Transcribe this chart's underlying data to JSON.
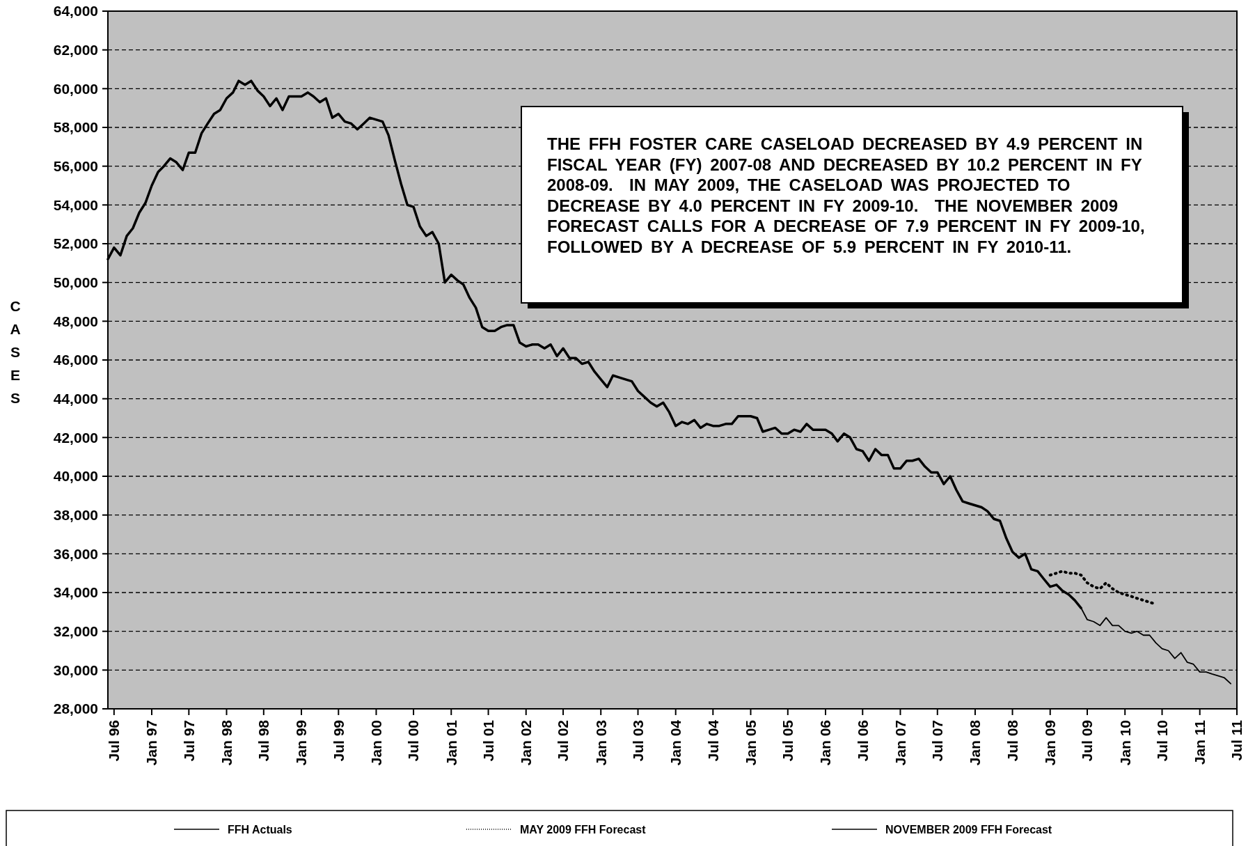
{
  "chart_data": {
    "type": "line",
    "ylabel": "CASES",
    "xlim": [
      "1996-06",
      "2011-07"
    ],
    "ylim": [
      28000,
      64000
    ],
    "yticks": [
      {
        "value": 28000,
        "label": "28,000"
      },
      {
        "value": 30000,
        "label": "30,000"
      },
      {
        "value": 32000,
        "label": "32,000"
      },
      {
        "value": 34000,
        "label": "34,000"
      },
      {
        "value": 36000,
        "label": "36,000"
      },
      {
        "value": 38000,
        "label": "38,000"
      },
      {
        "value": 40000,
        "label": "40,000"
      },
      {
        "value": 42000,
        "label": "42,000"
      },
      {
        "value": 44000,
        "label": "44,000"
      },
      {
        "value": 46000,
        "label": "46,000"
      },
      {
        "value": 48000,
        "label": "48,000"
      },
      {
        "value": 50000,
        "label": "50,000"
      },
      {
        "value": 52000,
        "label": "52,000"
      },
      {
        "value": 54000,
        "label": "54,000"
      },
      {
        "value": 56000,
        "label": "56,000"
      },
      {
        "value": 58000,
        "label": "58,000"
      },
      {
        "value": 60000,
        "label": "60,000"
      },
      {
        "value": 62000,
        "label": "62,000"
      },
      {
        "value": 64000,
        "label": "64,000"
      }
    ],
    "xticks": [
      {
        "value": "1996-07",
        "label": "Jul 96"
      },
      {
        "value": "1997-01",
        "label": "Jan 97"
      },
      {
        "value": "1997-07",
        "label": "Jul 97"
      },
      {
        "value": "1998-01",
        "label": "Jan 98"
      },
      {
        "value": "1998-07",
        "label": "Jul 98"
      },
      {
        "value": "1999-01",
        "label": "Jan 99"
      },
      {
        "value": "1999-07",
        "label": "Jul 99"
      },
      {
        "value": "2000-01",
        "label": "Jan 00"
      },
      {
        "value": "2000-07",
        "label": "Jul 00"
      },
      {
        "value": "2001-01",
        "label": "Jan 01"
      },
      {
        "value": "2001-07",
        "label": "Jul 01"
      },
      {
        "value": "2002-01",
        "label": "Jan 02"
      },
      {
        "value": "2002-07",
        "label": "Jul 02"
      },
      {
        "value": "2003-01",
        "label": "Jan 03"
      },
      {
        "value": "2003-07",
        "label": "Jul 03"
      },
      {
        "value": "2004-01",
        "label": "Jan 04"
      },
      {
        "value": "2004-07",
        "label": "Jul 04"
      },
      {
        "value": "2005-01",
        "label": "Jan 05"
      },
      {
        "value": "2005-07",
        "label": "Jul 05"
      },
      {
        "value": "2006-01",
        "label": "Jan 06"
      },
      {
        "value": "2006-07",
        "label": "Jul 06"
      },
      {
        "value": "2007-01",
        "label": "Jan 07"
      },
      {
        "value": "2007-07",
        "label": "Jul 07"
      },
      {
        "value": "2008-01",
        "label": "Jan 08"
      },
      {
        "value": "2008-07",
        "label": "Jul 08"
      },
      {
        "value": "2009-01",
        "label": "Jan 09"
      },
      {
        "value": "2009-07",
        "label": "Jul 09"
      },
      {
        "value": "2010-01",
        "label": "Jan 10"
      },
      {
        "value": "2010-07",
        "label": "Jul 10"
      },
      {
        "value": "2011-01",
        "label": "Jan 11"
      },
      {
        "value": "2011-07",
        "label": "Jul 11"
      }
    ],
    "grid": "y",
    "legend": "bottom",
    "annotations": [
      "THE FFH FOSTER CARE CASELOAD DECREASED BY 4.9 PERCENT IN FISCAL YEAR (FY) 2007-08 AND DECREASED BY 10.2 PERCENT IN FY 2008-09.  IN MAY 2009, THE CASELOAD WAS PROJECTED TO DECREASE BY 4.0 PERCENT IN FY 2009-10.  THE NOVEMBER 2009 FORECAST CALLS FOR A DECREASE OF 7.9 PERCENT IN FY 2009-10,  FOLLOWED BY A DECREASE OF 5.9 PERCENT IN FY 2010-11."
    ],
    "series": [
      {
        "name": "FFH Actuals",
        "color": "#000000",
        "line_style": "solid",
        "x": [
          "1996-06",
          "1996-07",
          "1996-08",
          "1996-09",
          "1996-10",
          "1996-11",
          "1996-12",
          "1997-01",
          "1997-02",
          "1997-03",
          "1997-04",
          "1997-05",
          "1997-06",
          "1997-07",
          "1997-08",
          "1997-09",
          "1997-10",
          "1997-11",
          "1997-12",
          "1998-01",
          "1998-02",
          "1998-03",
          "1998-04",
          "1998-05",
          "1998-06",
          "1998-07",
          "1998-08",
          "1998-09",
          "1998-10",
          "1998-11",
          "1998-12",
          "1999-01",
          "1999-02",
          "1999-03",
          "1999-04",
          "1999-05",
          "1999-06",
          "1999-07",
          "1999-08",
          "1999-09",
          "1999-10",
          "1999-11",
          "1999-12",
          "2000-01",
          "2000-02",
          "2000-03",
          "2000-04",
          "2000-05",
          "2000-06",
          "2000-07",
          "2000-08",
          "2000-09",
          "2000-10",
          "2000-11",
          "2000-12",
          "2001-01",
          "2001-02",
          "2001-03",
          "2001-04",
          "2001-05",
          "2001-06",
          "2001-07",
          "2001-08",
          "2001-09",
          "2001-10",
          "2001-11",
          "2001-12",
          "2002-01",
          "2002-02",
          "2002-03",
          "2002-04",
          "2002-05",
          "2002-06",
          "2002-07",
          "2002-08",
          "2002-09",
          "2002-10",
          "2002-11",
          "2002-12",
          "2003-01",
          "2003-02",
          "2003-03",
          "2003-04",
          "2003-05",
          "2003-06",
          "2003-07",
          "2003-08",
          "2003-09",
          "2003-10",
          "2003-11",
          "2003-12",
          "2004-01",
          "2004-02",
          "2004-03",
          "2004-04",
          "2004-05",
          "2004-06",
          "2004-07",
          "2004-08",
          "2004-09",
          "2004-10",
          "2004-11",
          "2004-12",
          "2005-01",
          "2005-02",
          "2005-03",
          "2005-04",
          "2005-05",
          "2005-06",
          "2005-07",
          "2005-08",
          "2005-09",
          "2005-10",
          "2005-11",
          "2005-12",
          "2006-01",
          "2006-02",
          "2006-03",
          "2006-04",
          "2006-05",
          "2006-06",
          "2006-07",
          "2006-08",
          "2006-09",
          "2006-10",
          "2006-11",
          "2006-12",
          "2007-01",
          "2007-02",
          "2007-03",
          "2007-04",
          "2007-05",
          "2007-06",
          "2007-07",
          "2007-08",
          "2007-09",
          "2007-10",
          "2007-11",
          "2007-12",
          "2008-01",
          "2008-02",
          "2008-03",
          "2008-04",
          "2008-05",
          "2008-06",
          "2008-07",
          "2008-08",
          "2008-09",
          "2008-10",
          "2008-11",
          "2008-12",
          "2009-01",
          "2009-02",
          "2009-03",
          "2009-04",
          "2009-05",
          "2009-06"
        ],
        "values": [
          51200,
          51800,
          51400,
          52400,
          52800,
          53600,
          54100,
          55000,
          55700,
          56000,
          56400,
          56200,
          55800,
          56700,
          56700,
          57700,
          58200,
          58700,
          58900,
          59500,
          59800,
          60400,
          60200,
          60400,
          59900,
          59600,
          59100,
          59500,
          58900,
          59600,
          59600,
          59600,
          59800,
          59600,
          59300,
          59500,
          58500,
          58700,
          58300,
          58200,
          57900,
          58200,
          58500,
          58400,
          58300,
          57600,
          56300,
          55100,
          54000,
          53900,
          52900,
          52400,
          52600,
          52000,
          50000,
          50400,
          50100,
          49900,
          49200,
          48700,
          47700,
          47500,
          47500,
          47700,
          47800,
          47800,
          46900,
          46700,
          46800,
          46800,
          46600,
          46800,
          46200,
          46600,
          46100,
          46100,
          45800,
          45900,
          45400,
          45000,
          44600,
          45200,
          45100,
          45000,
          44900,
          44400,
          44100,
          43800,
          43600,
          43800,
          43300,
          42600,
          42800,
          42700,
          42900,
          42500,
          42700,
          42600,
          42600,
          42700,
          42700,
          43100,
          43100,
          43100,
          43000,
          42300,
          42400,
          42500,
          42200,
          42200,
          42400,
          42300,
          42700,
          42400,
          42400,
          42400,
          42200,
          41800,
          42200,
          42000,
          41400,
          41300,
          40800,
          41400,
          41100,
          41100,
          40400,
          40400,
          40800,
          40800,
          40900,
          40500,
          40200,
          40200,
          39600,
          40000,
          39300,
          38700,
          38600,
          38500,
          38400,
          38200,
          37800,
          37700,
          36800,
          36100,
          35800,
          36000,
          35200,
          35100,
          34700,
          34300,
          34400,
          34100,
          33900,
          33600,
          33200
        ]
      },
      {
        "name": "MAY 2009 FFH Forecast",
        "color": "#000000",
        "line_style": "dotted",
        "x": [
          "2009-01",
          "2009-02",
          "2009-03",
          "2009-04",
          "2009-05",
          "2009-06",
          "2009-07",
          "2009-08",
          "2009-09",
          "2009-10",
          "2009-11",
          "2009-12",
          "2010-01",
          "2010-02",
          "2010-03",
          "2010-04",
          "2010-05",
          "2010-06"
        ],
        "values": [
          34900,
          35000,
          35100,
          35000,
          35000,
          34900,
          34500,
          34300,
          34200,
          34500,
          34200,
          34000,
          33900,
          33800,
          33700,
          33600,
          33500,
          33400
        ]
      },
      {
        "name": "NOVEMBER 2009 FFH Forecast",
        "color": "#000000",
        "line_style": "solid",
        "x": [
          "2009-06",
          "2009-07",
          "2009-08",
          "2009-09",
          "2009-10",
          "2009-11",
          "2009-12",
          "2010-01",
          "2010-02",
          "2010-03",
          "2010-04",
          "2010-05",
          "2010-06",
          "2010-07",
          "2010-08",
          "2010-09",
          "2010-10",
          "2010-11",
          "2010-12",
          "2011-01",
          "2011-02",
          "2011-03",
          "2011-04",
          "2011-05",
          "2011-06"
        ],
        "values": [
          33200,
          32600,
          32500,
          32300,
          32700,
          32300,
          32300,
          32000,
          31900,
          32000,
          31800,
          31800,
          31400,
          31100,
          31000,
          30600,
          30900,
          30400,
          30300,
          29900,
          29900,
          29800,
          29700,
          29600,
          29300
        ]
      }
    ]
  }
}
